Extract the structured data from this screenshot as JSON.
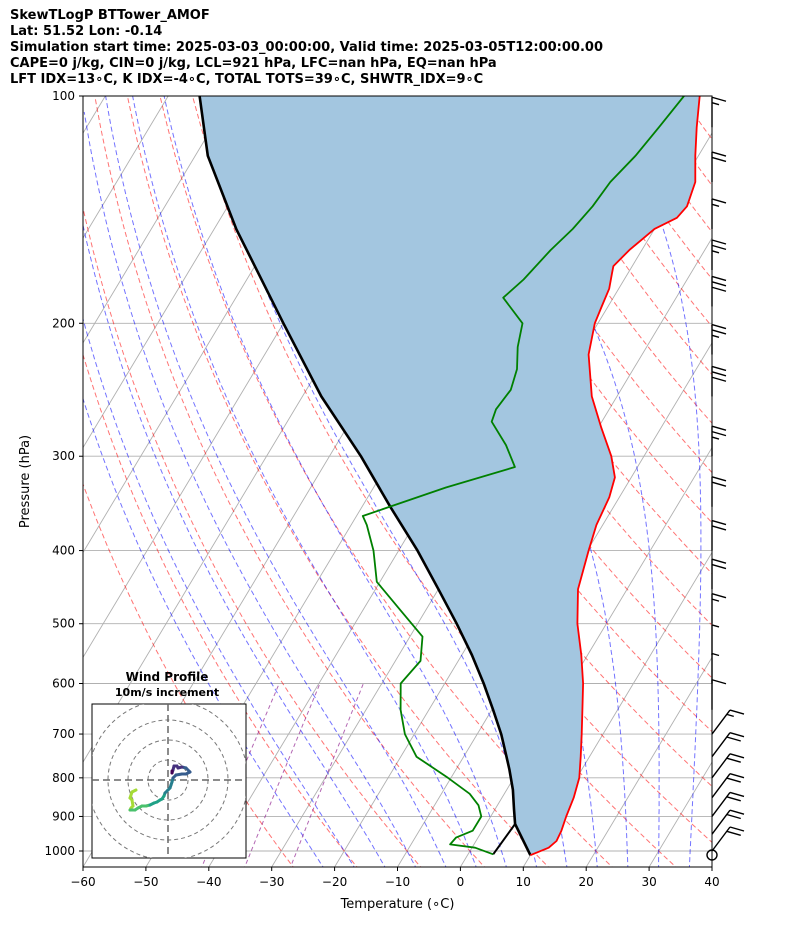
{
  "header": {
    "line1": "SkewTLogP BTTower_AMOF",
    "line2": "Lat: 51.52   Lon: -0.14",
    "line3": "Simulation start time: 2025-03-03_00:00:00, Valid time: 2025-03-05T12:00:00.00",
    "line4": "CAPE=0 j/kg, CIN=0 j/kg, LCL=921 hPa, LFC=nan hPa, EQ=nan hPa",
    "line5": "LFT IDX=13∘C, K IDX=-4∘C, TOTAL TOTS=39∘C, SHWTR_IDX=9∘C"
  },
  "chart_data": [
    {
      "type": "line",
      "subtype": "skew-t-log-p",
      "title": "SkewTLogP BTTower_AMOF",
      "xlabel": "Temperature (∘C)",
      "ylabel": "Pressure (hPa)",
      "xlim": [
        -60,
        40
      ],
      "ylim": [
        1050,
        100
      ],
      "x_ticks": [
        -60,
        -50,
        -40,
        -30,
        -20,
        -10,
        0,
        10,
        20,
        30,
        40
      ],
      "x_tick_labels": [
        "−60",
        "−50",
        "−40",
        "−30",
        "−20",
        "−10",
        "0",
        "10",
        "20",
        "30",
        "40"
      ],
      "y_ticks": [
        1000,
        900,
        800,
        700,
        600,
        500,
        400,
        300,
        200,
        100
      ],
      "y_tick_labels": [
        "1000",
        "900",
        "800",
        "700",
        "600",
        "500",
        "400",
        "300",
        "200",
        "100"
      ],
      "grid": true,
      "colors": {
        "temperature": "#ff0000",
        "dewpoint": "#008000",
        "parcel": "#000000",
        "cape_fill": "#a3c6e0",
        "dry_adiabats": "#ff0000",
        "moist_adiabats": "#0000ff",
        "mixing_ratio": "#800080",
        "isotherms": "#b0b0b0",
        "wind_barbs": "#000000"
      },
      "series": [
        {
          "name": "Temperature",
          "points": [
            [
              10.0,
              1013
            ],
            [
              12.2,
              990
            ],
            [
              12.8,
              970
            ],
            [
              12.6,
              940
            ],
            [
              12.0,
              900
            ],
            [
              11.4,
              850
            ],
            [
              10.4,
              800
            ],
            [
              8.6,
              750
            ],
            [
              6.6,
              700
            ],
            [
              4.4,
              650
            ],
            [
              2.0,
              600
            ],
            [
              -1.0,
              550
            ],
            [
              -4.6,
              500
            ],
            [
              -7.8,
              450
            ],
            [
              -9.8,
              400
            ],
            [
              -11.0,
              370
            ],
            [
              -11.6,
              340
            ],
            [
              -12.6,
              320
            ],
            [
              -15.2,
              300
            ],
            [
              -19.5,
              275
            ],
            [
              -24.0,
              250
            ],
            [
              -28.5,
              220
            ],
            [
              -30.5,
              200
            ],
            [
              -31.0,
              190
            ],
            [
              -31.5,
              180
            ],
            [
              -32.5,
              172
            ],
            [
              -33.0,
              168
            ],
            [
              -32.0,
              160
            ],
            [
              -30.0,
              150
            ],
            [
              -27.5,
              145
            ],
            [
              -27.0,
              140
            ],
            [
              -28.0,
              130
            ],
            [
              -30.5,
              120
            ],
            [
              -33.0,
              110
            ],
            [
              -35.5,
              100
            ]
          ]
        },
        {
          "name": "Dewpoint",
          "points": [
            [
              4.0,
              1010
            ],
            [
              0.5,
              990
            ],
            [
              -3.8,
              980
            ],
            [
              -3.5,
              960
            ],
            [
              -1.5,
              940
            ],
            [
              -1.5,
              900
            ],
            [
              -3.0,
              870
            ],
            [
              -5.5,
              840
            ],
            [
              -10.5,
              800
            ],
            [
              -17.5,
              750
            ],
            [
              -21.5,
              700
            ],
            [
              -24.5,
              650
            ],
            [
              -27.0,
              600
            ],
            [
              -26.0,
              560
            ],
            [
              -28.0,
              520
            ],
            [
              -34.0,
              480
            ],
            [
              -40.5,
              440
            ],
            [
              -44.0,
              400
            ],
            [
              -47.5,
              370
            ],
            [
              -49.0,
              360
            ],
            [
              -38.5,
              330
            ],
            [
              -29.5,
              310
            ],
            [
              -33.0,
              290
            ],
            [
              -37.5,
              270
            ],
            [
              -38.0,
              260
            ],
            [
              -37.5,
              245
            ],
            [
              -38.5,
              230
            ],
            [
              -40.5,
              215
            ],
            [
              -42.0,
              200
            ],
            [
              -47.5,
              185
            ],
            [
              -46.0,
              175
            ],
            [
              -44.5,
              160
            ],
            [
              -43.0,
              150
            ],
            [
              -42.0,
              140
            ],
            [
              -41.5,
              130
            ],
            [
              -40.0,
              120
            ],
            [
              -39.0,
              110
            ],
            [
              -38.0,
              100
            ]
          ]
        },
        {
          "name": "Parcel profile",
          "points": [
            [
              10.0,
              1013
            ],
            [
              4.6,
              921
            ],
            [
              3.0,
              880
            ],
            [
              1.0,
              830
            ],
            [
              -1.5,
              780
            ],
            [
              -3.2,
              750
            ],
            [
              -6.2,
              700
            ],
            [
              -9.8,
              650
            ],
            [
              -13.8,
              600
            ],
            [
              -18.4,
              550
            ],
            [
              -23.8,
              500
            ],
            [
              -30.0,
              450
            ],
            [
              -37.0,
              400
            ],
            [
              -45.5,
              350
            ],
            [
              -55.0,
              300
            ],
            [
              -67.0,
              250
            ],
            [
              -80.0,
              200
            ],
            [
              -96.5,
              150
            ],
            [
              -108.0,
              120
            ],
            [
              -115.0,
              100
            ]
          ]
        },
        {
          "name": "Surface dewpoint segment",
          "points": [
            [
              4.6,
              921
            ],
            [
              4.0,
              1010
            ]
          ]
        }
      ],
      "wind_barbs": [
        {
          "p": 1000,
          "barbs": 2
        },
        {
          "p": 950,
          "barbs": 2
        },
        {
          "p": 900,
          "barbs": 2
        },
        {
          "p": 850,
          "barbs": 2
        },
        {
          "p": 800,
          "barbs": 2
        },
        {
          "p": 750,
          "barbs": 2
        },
        {
          "p": 700,
          "barbs": 1.5
        },
        {
          "p": 650,
          "barbs": 1
        },
        {
          "p": 600,
          "barbs": 0.5
        },
        {
          "p": 550,
          "barbs": 0.5
        },
        {
          "p": 500,
          "barbs": 1.5
        },
        {
          "p": 450,
          "barbs": 2
        },
        {
          "p": 400,
          "barbs": 2
        },
        {
          "p": 350,
          "barbs": 2
        },
        {
          "p": 300,
          "barbs": 2.5
        },
        {
          "p": 250,
          "barbs": 3
        },
        {
          "p": 220,
          "barbs": 2.5
        },
        {
          "p": 190,
          "barbs": 3
        },
        {
          "p": 170,
          "barbs": 2.5
        },
        {
          "p": 150,
          "barbs": 1.5
        },
        {
          "p": 130,
          "barbs": 2
        },
        {
          "p": 110,
          "barbs": 1.5
        }
      ]
    },
    {
      "type": "line",
      "subtype": "hodograph",
      "title": "Wind Profile",
      "subtitle": "10m/s increment",
      "ring_increment_ms": 10,
      "points": [
        [
          -32,
          -10
        ],
        [
          -36,
          -12
        ],
        [
          -38,
          -18
        ],
        [
          -36,
          -20
        ],
        [
          -35,
          -26
        ],
        [
          -37,
          -28
        ],
        [
          -38,
          -30
        ],
        [
          -33,
          -30
        ],
        [
          -30,
          -28
        ],
        [
          -26,
          -26
        ],
        [
          -22,
          -26
        ],
        [
          -18,
          -25
        ],
        [
          -14,
          -23
        ],
        [
          -11,
          -22
        ],
        [
          -8,
          -20
        ],
        [
          -6,
          -19
        ],
        [
          -4,
          -16
        ],
        [
          -3,
          -13
        ],
        [
          0,
          -10
        ],
        [
          2,
          -8
        ],
        [
          3,
          -5
        ],
        [
          4,
          -2
        ],
        [
          5,
          2
        ],
        [
          8,
          5
        ],
        [
          14,
          6
        ],
        [
          18,
          6
        ],
        [
          22,
          8
        ],
        [
          18,
          12
        ],
        [
          14,
          13
        ],
        [
          10,
          12
        ],
        [
          9,
          14
        ],
        [
          6,
          14
        ],
        [
          5,
          10
        ],
        [
          4,
          7
        ],
        [
          4,
          9
        ]
      ]
    }
  ]
}
